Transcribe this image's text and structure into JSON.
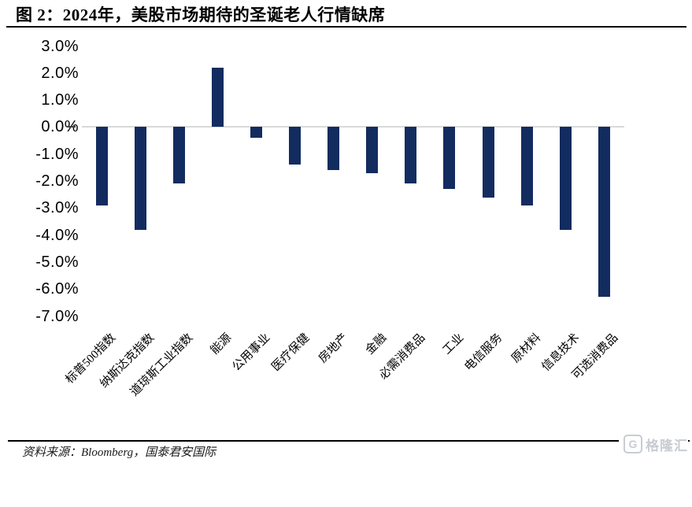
{
  "header": {
    "title": "图 2：2024年，美股市场期待的圣诞老人行情缺席"
  },
  "footer": {
    "source_note": "资料来源：Bloomberg，国泰君安国际",
    "watermark_letter": "G",
    "watermark_text": "格隆汇"
  },
  "colors": {
    "bar": "#132C5F",
    "zero_line": "#D9D9D9",
    "title_text": "#000000",
    "watermark": "#c8ccd2"
  },
  "chart_data": {
    "type": "bar",
    "title": "图 2：2024年，美股市场期待的圣诞老人行情缺席",
    "categories": [
      "标普500指数",
      "纳斯达克指数",
      "道琼斯工业指数",
      "能源",
      "公用事业",
      "医疗保健",
      "房地产",
      "金融",
      "必需消费品",
      "工业",
      "电信服务",
      "原材料",
      "信息技术",
      "可选消费品"
    ],
    "values": [
      -2.9,
      -3.8,
      -2.1,
      2.2,
      -0.4,
      -1.4,
      -1.6,
      -1.7,
      -2.1,
      -2.3,
      -2.6,
      -2.9,
      -3.8,
      -6.3
    ],
    "xlabel": "",
    "ylabel": "",
    "ylim": [
      -7.0,
      3.0
    ],
    "y_tick_labels": [
      "3.0%",
      "2.0%",
      "1.0%",
      "0.0%",
      "-1.0%",
      "-2.0%",
      "-3.0%",
      "-4.0%",
      "-5.0%",
      "-6.0%",
      "-7.0%"
    ],
    "grid": "zero-line-only",
    "legend": "none",
    "bar_color": "#132C5F"
  }
}
